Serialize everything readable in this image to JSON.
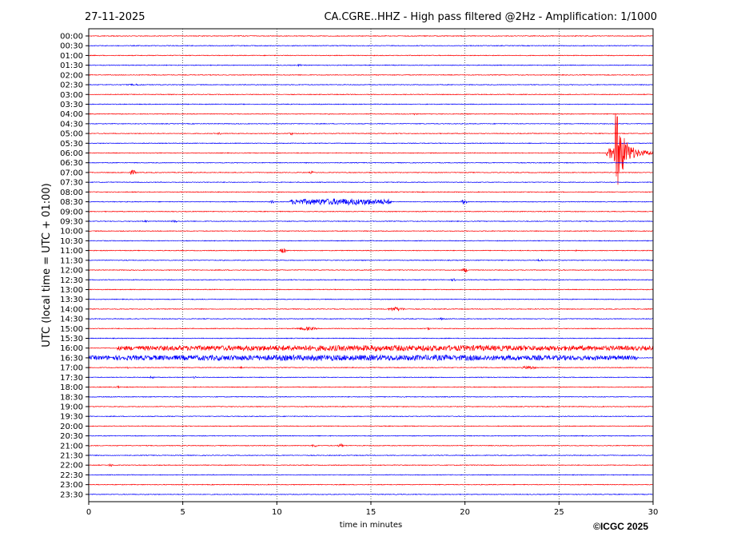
{
  "header": {
    "date": "27-11-2025",
    "title": "CA.CGRE..HHZ - High pass filtered @2Hz - Amplification: 1/1000"
  },
  "copyright": "©ICGC 2025",
  "chart_data": {
    "type": "line",
    "subtype": "helicorder",
    "xlabel": "time in minutes",
    "ylabel": "UTC (local time = UTC + 01:00)",
    "xlim": [
      0,
      30
    ],
    "x_ticks": [
      0,
      5,
      10,
      15,
      20,
      25,
      30
    ],
    "x_tick_labels": [
      "0",
      "5",
      "10",
      "15",
      "20",
      "25",
      "30"
    ],
    "grid": "vertical dotted at x ticks",
    "trace_colors": [
      "#ff0000",
      "#0000ff"
    ],
    "traces": [
      {
        "label": "00:00",
        "events": []
      },
      {
        "label": "00:30",
        "events": []
      },
      {
        "label": "01:00",
        "events": []
      },
      {
        "label": "01:30",
        "events": [
          {
            "start": 11.0,
            "end": 11.4,
            "amp": 1.2
          }
        ]
      },
      {
        "label": "02:00",
        "events": []
      },
      {
        "label": "02:30",
        "events": [
          {
            "start": 1.8,
            "end": 3.2,
            "amp": 1.0
          }
        ]
      },
      {
        "label": "03:00",
        "events": []
      },
      {
        "label": "03:30",
        "events": []
      },
      {
        "label": "04:00",
        "events": [
          {
            "start": 17.2,
            "end": 17.5,
            "amp": 1.2
          }
        ]
      },
      {
        "label": "04:30",
        "events": []
      },
      {
        "label": "05:00",
        "events": [
          {
            "start": 6.8,
            "end": 7.1,
            "amp": 1.6
          },
          {
            "start": 10.6,
            "end": 10.9,
            "amp": 2.0
          }
        ]
      },
      {
        "label": "05:30",
        "events": []
      },
      {
        "label": "06:00",
        "events": [
          {
            "start": 27.5,
            "end": 30.0,
            "amp": 60.0,
            "type": "earthquake",
            "onset": 28.0
          }
        ]
      },
      {
        "label": "06:30",
        "events": []
      },
      {
        "label": "07:00",
        "events": [
          {
            "start": 2.1,
            "end": 2.6,
            "amp": 3.0
          },
          {
            "start": 11.7,
            "end": 12.0,
            "amp": 1.6
          }
        ]
      },
      {
        "label": "07:30",
        "events": []
      },
      {
        "label": "08:00",
        "events": []
      },
      {
        "label": "08:30",
        "events": [
          {
            "start": 9.6,
            "end": 9.9,
            "amp": 2.0
          },
          {
            "start": 10.7,
            "end": 16.1,
            "amp": 4.0
          },
          {
            "start": 19.7,
            "end": 20.2,
            "amp": 3.0
          }
        ]
      },
      {
        "label": "09:00",
        "events": []
      },
      {
        "label": "09:30",
        "events": [
          {
            "start": 2.8,
            "end": 3.2,
            "amp": 1.4
          },
          {
            "start": 4.3,
            "end": 4.8,
            "amp": 1.6
          }
        ]
      },
      {
        "label": "10:00",
        "events": []
      },
      {
        "label": "10:30",
        "events": []
      },
      {
        "label": "11:00",
        "events": [
          {
            "start": 10.1,
            "end": 10.6,
            "amp": 3.0
          },
          {
            "start": 25.8,
            "end": 26.1,
            "amp": 1.2
          }
        ]
      },
      {
        "label": "11:30",
        "events": [
          {
            "start": 23.8,
            "end": 24.2,
            "amp": 1.6
          }
        ]
      },
      {
        "label": "12:00",
        "events": [
          {
            "start": 19.8,
            "end": 20.2,
            "amp": 3.0
          }
        ]
      },
      {
        "label": "12:30",
        "events": [
          {
            "start": 19.2,
            "end": 19.6,
            "amp": 1.6
          }
        ]
      },
      {
        "label": "13:00",
        "events": []
      },
      {
        "label": "13:30",
        "events": []
      },
      {
        "label": "14:00",
        "events": [
          {
            "start": 15.8,
            "end": 16.9,
            "amp": 2.6
          }
        ]
      },
      {
        "label": "14:30",
        "events": [
          {
            "start": 18.6,
            "end": 18.9,
            "amp": 1.4
          }
        ]
      },
      {
        "label": "15:00",
        "events": [
          {
            "start": 10.9,
            "end": 12.3,
            "amp": 2.2
          },
          {
            "start": 17.9,
            "end": 18.2,
            "amp": 1.6
          }
        ]
      },
      {
        "label": "15:30",
        "events": []
      },
      {
        "label": "16:00",
        "events": [
          {
            "start": 1.5,
            "end": 30.0,
            "amp": 3.5
          }
        ]
      },
      {
        "label": "16:30",
        "events": [
          {
            "start": 0.0,
            "end": 29.2,
            "amp": 3.5
          }
        ]
      },
      {
        "label": "17:00",
        "events": [
          {
            "start": 2.0,
            "end": 2.2,
            "amp": 1.4
          },
          {
            "start": 8.0,
            "end": 8.2,
            "amp": 1.2
          },
          {
            "start": 22.9,
            "end": 23.9,
            "amp": 2.2
          }
        ]
      },
      {
        "label": "17:30",
        "events": [
          {
            "start": 3.2,
            "end": 3.5,
            "amp": 2.0
          },
          {
            "start": 5.5,
            "end": 5.8,
            "amp": 1.4
          }
        ]
      },
      {
        "label": "18:00",
        "events": [
          {
            "start": 1.4,
            "end": 1.7,
            "amp": 1.6
          }
        ]
      },
      {
        "label": "18:30",
        "events": []
      },
      {
        "label": "19:00",
        "events": []
      },
      {
        "label": "19:30",
        "events": []
      },
      {
        "label": "20:00",
        "events": []
      },
      {
        "label": "20:30",
        "events": []
      },
      {
        "label": "21:00",
        "events": [
          {
            "start": 11.8,
            "end": 12.2,
            "amp": 2.0
          },
          {
            "start": 13.2,
            "end": 13.6,
            "amp": 2.4
          }
        ]
      },
      {
        "label": "21:30",
        "events": []
      },
      {
        "label": "22:00",
        "events": [
          {
            "start": 1.0,
            "end": 1.3,
            "amp": 2.0
          }
        ]
      },
      {
        "label": "22:30",
        "events": []
      },
      {
        "label": "23:00",
        "events": []
      },
      {
        "label": "23:30",
        "events": []
      }
    ]
  }
}
